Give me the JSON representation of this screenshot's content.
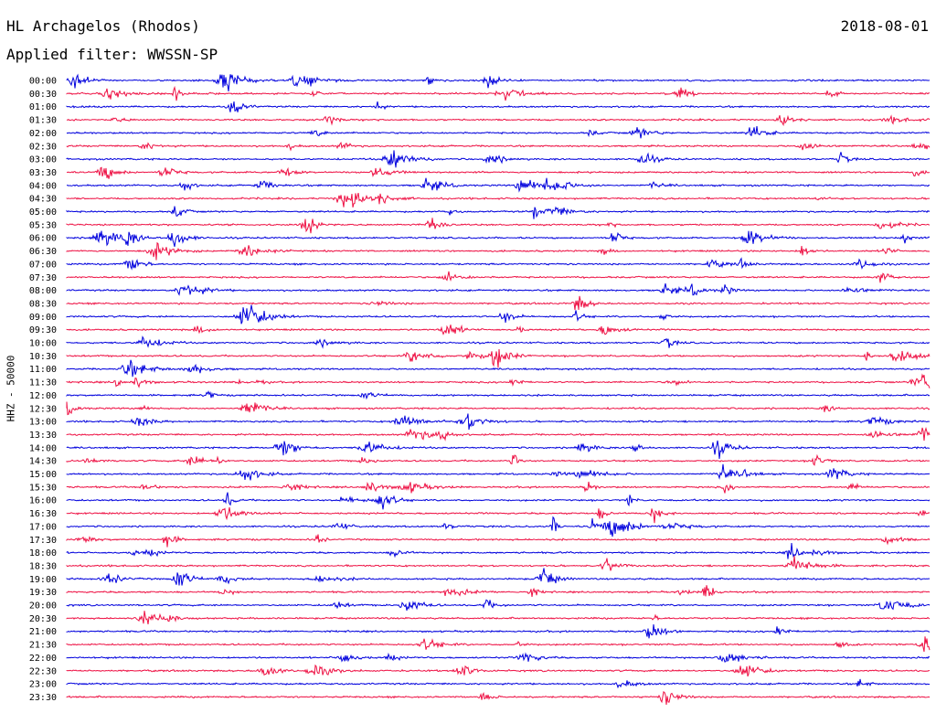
{
  "header": {
    "station": "HL Archagelos (Rhodos)",
    "date": "2018-08-01",
    "filter": "Applied filter: WWSSN-SP"
  },
  "channel_label": "HHZ - 50000",
  "colors": {
    "trace_a": "#0000dd",
    "trace_b": "#ee1144"
  },
  "chart_data": {
    "type": "line",
    "title": "HL Archagelos (Rhodos)",
    "ylabel": "HHZ - 50000",
    "rows": [
      "00:00",
      "00:30",
      "01:00",
      "01:30",
      "02:00",
      "02:30",
      "03:00",
      "03:30",
      "04:00",
      "04:30",
      "05:00",
      "05:30",
      "06:00",
      "06:30",
      "07:00",
      "07:30",
      "08:00",
      "08:30",
      "09:00",
      "09:30",
      "10:00",
      "10:30",
      "11:00",
      "11:30",
      "12:00",
      "12:30",
      "13:00",
      "13:30",
      "14:00",
      "14:30",
      "15:00",
      "15:30",
      "16:00",
      "16:30",
      "17:00",
      "17:30",
      "18:00",
      "18:30",
      "19:00",
      "19:30",
      "20:00",
      "20:30",
      "21:00",
      "21:30",
      "22:00",
      "22:30",
      "23:00",
      "23:30"
    ],
    "grid": false,
    "legend": "none"
  }
}
